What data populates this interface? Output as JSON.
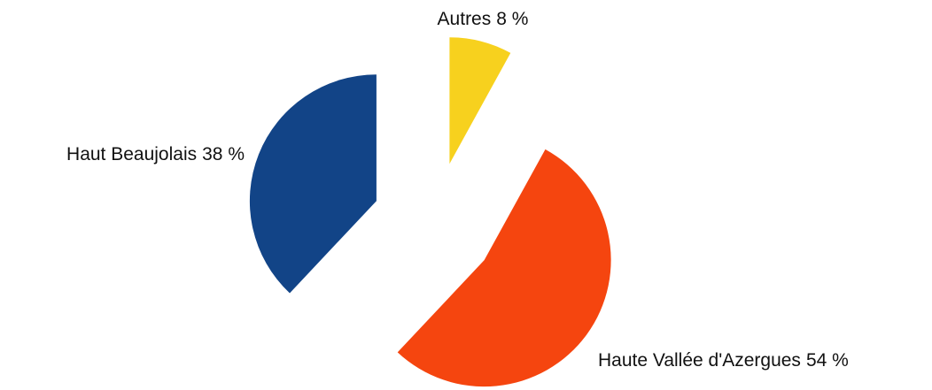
{
  "chart_data": {
    "type": "pie",
    "categories": [
      "Autres",
      "Haute Vallée d'Azergues",
      "Haut Beaujolais"
    ],
    "values": [
      8,
      54,
      38
    ],
    "value_labels": [
      "8 %",
      "54 %",
      "38 %"
    ],
    "colors": [
      "#f7d11e",
      "#f5450f",
      "#124487"
    ]
  }
}
